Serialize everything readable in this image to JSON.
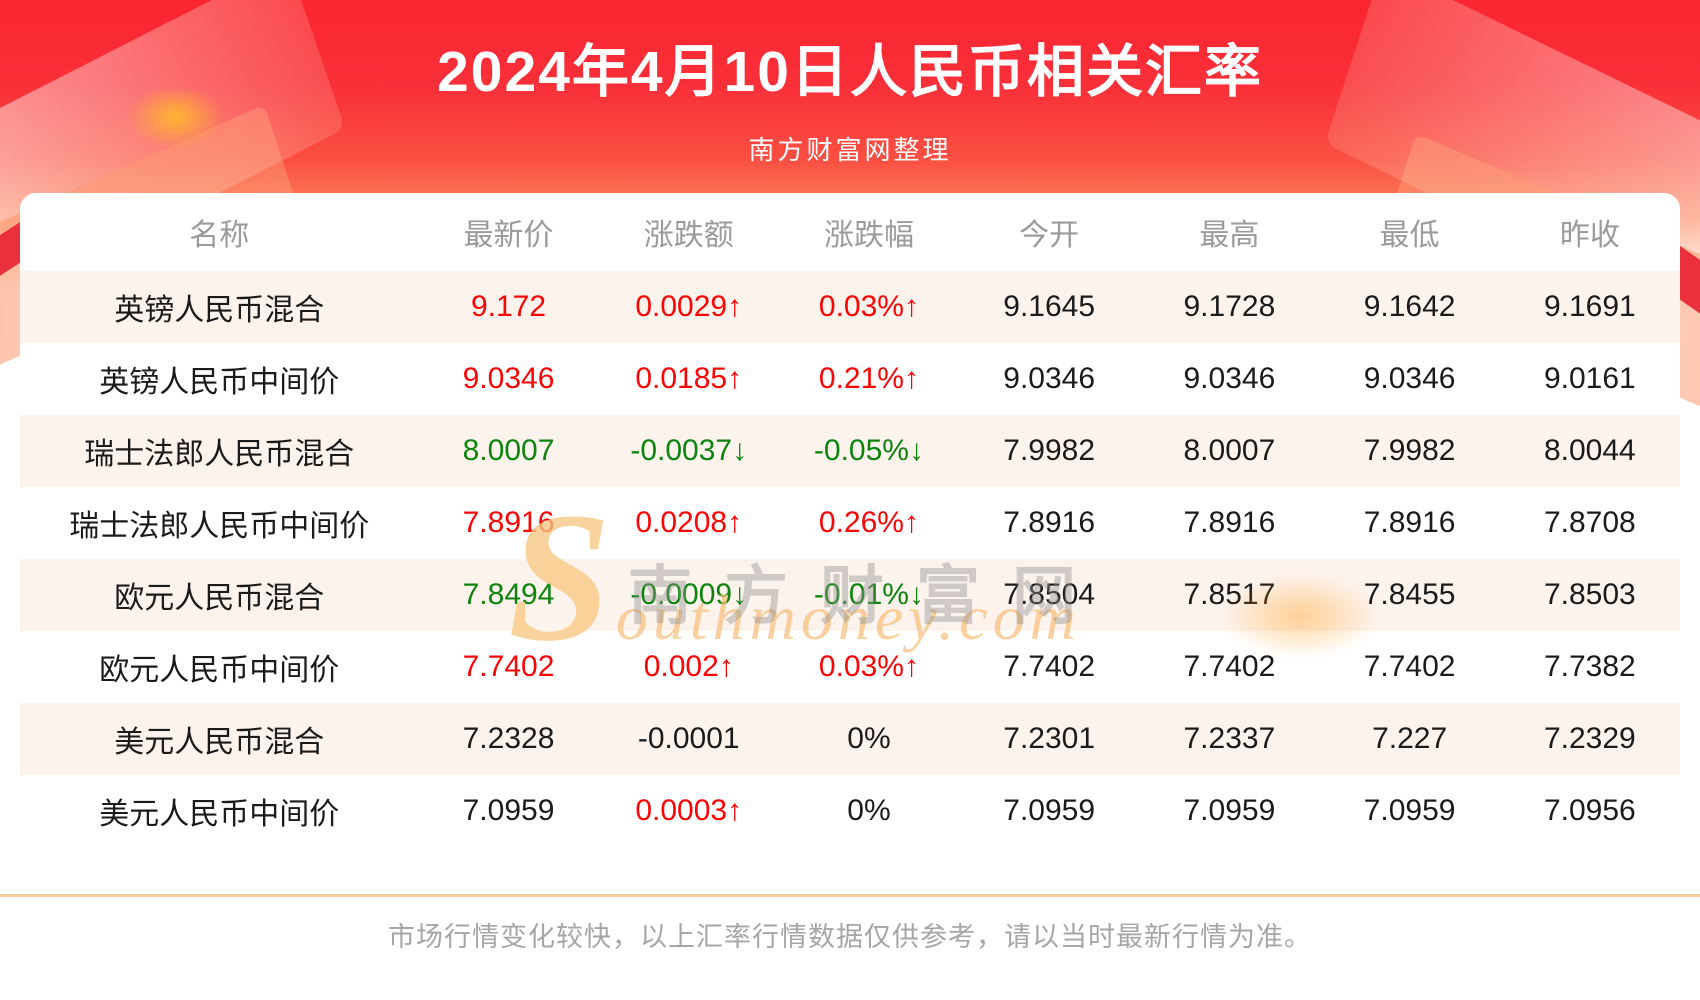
{
  "header": {
    "title": "2024年4月10日人民币相关汇率",
    "subtitle": "南方财富网整理"
  },
  "table": {
    "columns": [
      "名称",
      "最新价",
      "涨跌额",
      "涨跌幅",
      "今开",
      "最高",
      "最低",
      "昨收"
    ],
    "rows": [
      {
        "name": "英镑人民币混合",
        "latest": "9.172",
        "latest_color": "red",
        "change": "0.0029↑",
        "change_color": "red",
        "pct": "0.03%↑",
        "pct_color": "red",
        "open": "9.1645",
        "high": "9.1728",
        "low": "9.1642",
        "prev": "9.1691"
      },
      {
        "name": "英镑人民币中间价",
        "latest": "9.0346",
        "latest_color": "red",
        "change": "0.0185↑",
        "change_color": "red",
        "pct": "0.21%↑",
        "pct_color": "red",
        "open": "9.0346",
        "high": "9.0346",
        "low": "9.0346",
        "prev": "9.0161"
      },
      {
        "name": "瑞士法郎人民币混合",
        "latest": "8.0007",
        "latest_color": "green",
        "change": "-0.0037↓",
        "change_color": "green",
        "pct": "-0.05%↓",
        "pct_color": "green",
        "open": "7.9982",
        "high": "8.0007",
        "low": "7.9982",
        "prev": "8.0044"
      },
      {
        "name": "瑞士法郎人民币中间价",
        "latest": "7.8916",
        "latest_color": "red",
        "change": "0.0208↑",
        "change_color": "red",
        "pct": "0.26%↑",
        "pct_color": "red",
        "open": "7.8916",
        "high": "7.8916",
        "low": "7.8916",
        "prev": "7.8708"
      },
      {
        "name": "欧元人民币混合",
        "latest": "7.8494",
        "latest_color": "green",
        "change": "-0.0009↓",
        "change_color": "green",
        "pct": "-0.01%↓",
        "pct_color": "green",
        "open": "7.8504",
        "high": "7.8517",
        "low": "7.8455",
        "prev": "7.8503"
      },
      {
        "name": "欧元人民币中间价",
        "latest": "7.7402",
        "latest_color": "red",
        "change": "0.002↑",
        "change_color": "red",
        "pct": "0.03%↑",
        "pct_color": "red",
        "open": "7.7402",
        "high": "7.7402",
        "low": "7.7402",
        "prev": "7.7382"
      },
      {
        "name": "美元人民币混合",
        "latest": "7.2328",
        "latest_color": "black",
        "change": "-0.0001",
        "change_color": "black",
        "pct": "0%",
        "pct_color": "black",
        "open": "7.2301",
        "high": "7.2337",
        "low": "7.227",
        "prev": "7.2329"
      },
      {
        "name": "美元人民币中间价",
        "latest": "7.0959",
        "latest_color": "black",
        "change": "0.0003↑",
        "change_color": "red",
        "pct": "0%",
        "pct_color": "black",
        "open": "7.0959",
        "high": "7.0959",
        "low": "7.0959",
        "prev": "7.0956"
      }
    ]
  },
  "watermark": {
    "cn": "南方财富网",
    "en": "Southmoney.com"
  },
  "footer": {
    "note": "市场行情变化较快，以上汇率行情数据仅供参考，请以当时最新行情为准。"
  },
  "colors": {
    "up": "#f80505",
    "down": "#0d840d",
    "neutral": "#1b1b1b",
    "banner_red": "#fa2531",
    "divider_tan": "#f7cb96",
    "row_pink": "#fdf3ed"
  }
}
